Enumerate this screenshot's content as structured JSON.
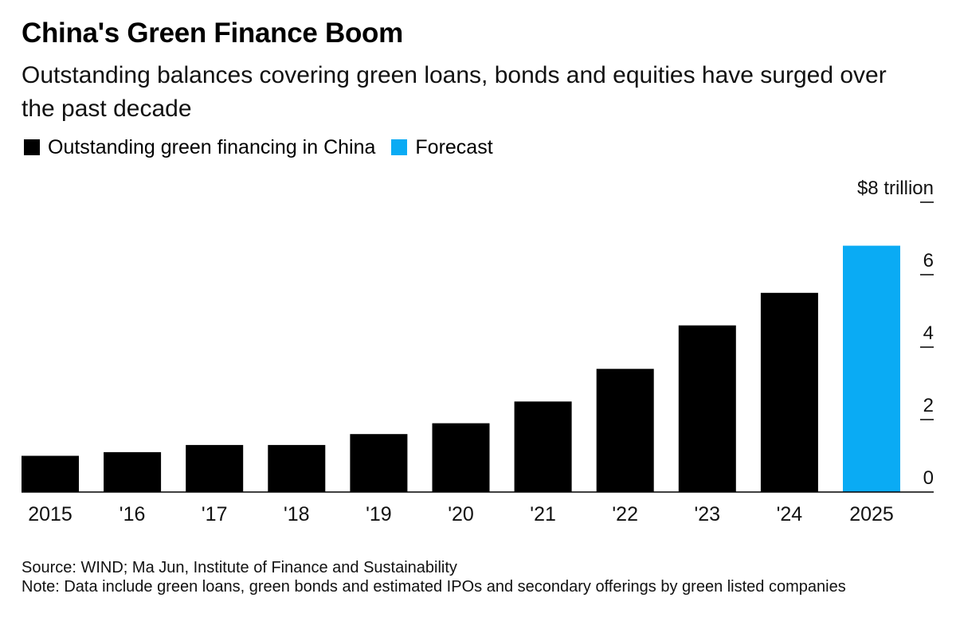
{
  "title": "China's Green Finance Boom",
  "subtitle": "Outstanding balances covering green loans, bonds and equities have surged over the past decade",
  "legend": [
    {
      "label": "Outstanding green financing in China",
      "color": "#000000"
    },
    {
      "label": "Forecast",
      "color": "#0aabf4"
    }
  ],
  "chart_data": {
    "type": "bar",
    "categories": [
      "2015",
      "'16",
      "'17",
      "'18",
      "'19",
      "'20",
      "'21",
      "'22",
      "'23",
      "'24",
      "2025"
    ],
    "values": [
      1.0,
      1.1,
      1.3,
      1.3,
      1.6,
      1.9,
      2.5,
      3.4,
      4.6,
      5.5,
      6.8
    ],
    "colors": [
      "#000000",
      "#000000",
      "#000000",
      "#000000",
      "#000000",
      "#000000",
      "#000000",
      "#000000",
      "#000000",
      "#000000",
      "#0aabf4"
    ],
    "y_ticks": [
      0,
      2,
      4,
      6,
      8
    ],
    "y_tick_labels": [
      "0",
      "2",
      "4",
      "6",
      "$8 trillion"
    ],
    "ylim": [
      0,
      8
    ],
    "y_axis_side": "right",
    "grid": false
  },
  "footer": {
    "source": "Source: WIND; Ma Jun, Institute of Finance and Sustainability",
    "note": "Note: Data include green loans, green bonds and estimated IPOs and secondary offerings by green listed companies"
  }
}
